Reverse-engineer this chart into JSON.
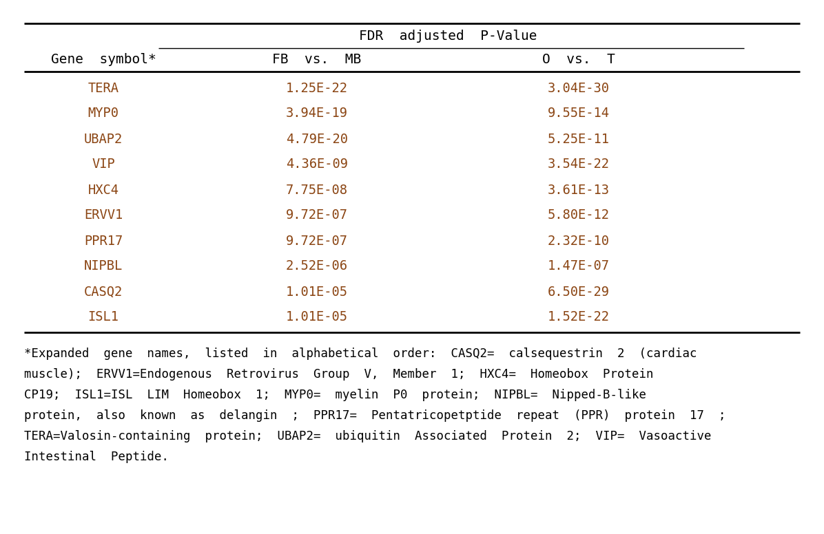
{
  "header_group": "FDR  adjusted  P-Value",
  "col1_header": "Gene  symbol*",
  "col2_header": "FB  vs.  MB",
  "col3_header": "O  vs.  T",
  "genes": [
    "TERA",
    "MYP0",
    "UBAP2",
    "VIP",
    "HXC4",
    "ERVV1",
    "PPR17",
    "NIPBL",
    "CASQ2",
    "ISL1"
  ],
  "fb_vs_mb": [
    "1.25E-22",
    "3.94E-19",
    "4.79E-20",
    "4.36E-09",
    "7.75E-08",
    "9.72E-07",
    "9.72E-07",
    "2.52E-06",
    "1.01E-05",
    "1.01E-05"
  ],
  "o_vs_t": [
    "3.04E-30",
    "9.55E-14",
    "5.25E-11",
    "3.54E-22",
    "3.61E-13",
    "5.80E-12",
    "2.32E-10",
    "1.47E-07",
    "6.50E-29",
    "1.52E-22"
  ],
  "gene_color": "#8B4513",
  "header_color": "#000000",
  "footnote_lines": [
    "*Expanded  gene  names,  listed  in  alphabetical  order:  CASQ2=  calsequestrin  2  (cardiac",
    "muscle);  ERVV1=Endogenous  Retrovirus  Group  V,  Member  1;  HXC4=  Homeobox  Protein",
    "CP19;  ISL1=ISL  LIM  Homeobox  1;  MYP0=  myelin  P0  protein;  NIPBL=  Nipped-B-like",
    "protein,  also  known  as  delangin  ;  PPR17=  Pentatricopetptide  repeat  (PPR)  protein  17  ;",
    "TERA=Valosin-containing  protein;  UBAP2=  ubiquitin  Associated  Protein  2;  VIP=  Vasoactive",
    "Intestinal  Peptide."
  ],
  "bg_color": "#ffffff",
  "figsize": [
    11.96,
    7.76
  ],
  "dpi": 100
}
